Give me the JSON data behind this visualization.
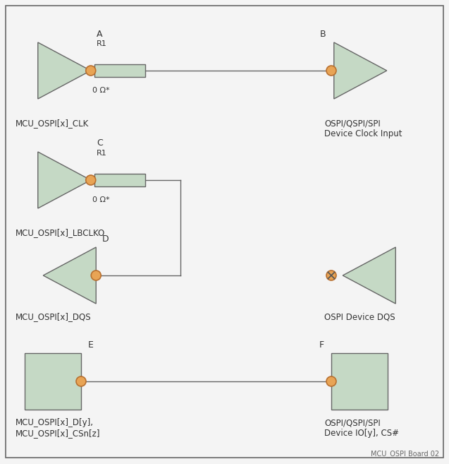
{
  "bg_color": "#f4f4f4",
  "border_color": "#666666",
  "tri_fill": "#c5d9c5",
  "tri_edge": "#666666",
  "res_fill": "#c5d9c5",
  "res_edge": "#666666",
  "dot_fill": "#e8a455",
  "dot_edge": "#b87030",
  "rect_fill": "#c5d9c5",
  "rect_edge": "#666666",
  "line_color": "#666666",
  "label_color": "#333333",
  "footer_color": "#666666",
  "node_A": "A",
  "node_B": "B",
  "node_C": "C",
  "node_D": "D",
  "node_E": "E",
  "node_F": "F",
  "res_label": "R1",
  "res_value": "0 Ω*",
  "sig_A": "MCU_OSPI[x]_CLK",
  "sig_B": "OSPI/QSPI/SPI\nDevice Clock Input",
  "sig_C": "MCU_OSPI[x]_LBCLKO",
  "sig_D": "MCU_OSPI[x]_DQS",
  "sig_E": "MCU_OSPI[x]_D[y],\nMCU_OSPI[x]_CSn[z]",
  "sig_F": "OSPI/QSPI/SPI\nDevice IO[y], CS#",
  "sig_DQS": "OSPI Device DQS",
  "footer": "MCU_OSPI Board 02"
}
